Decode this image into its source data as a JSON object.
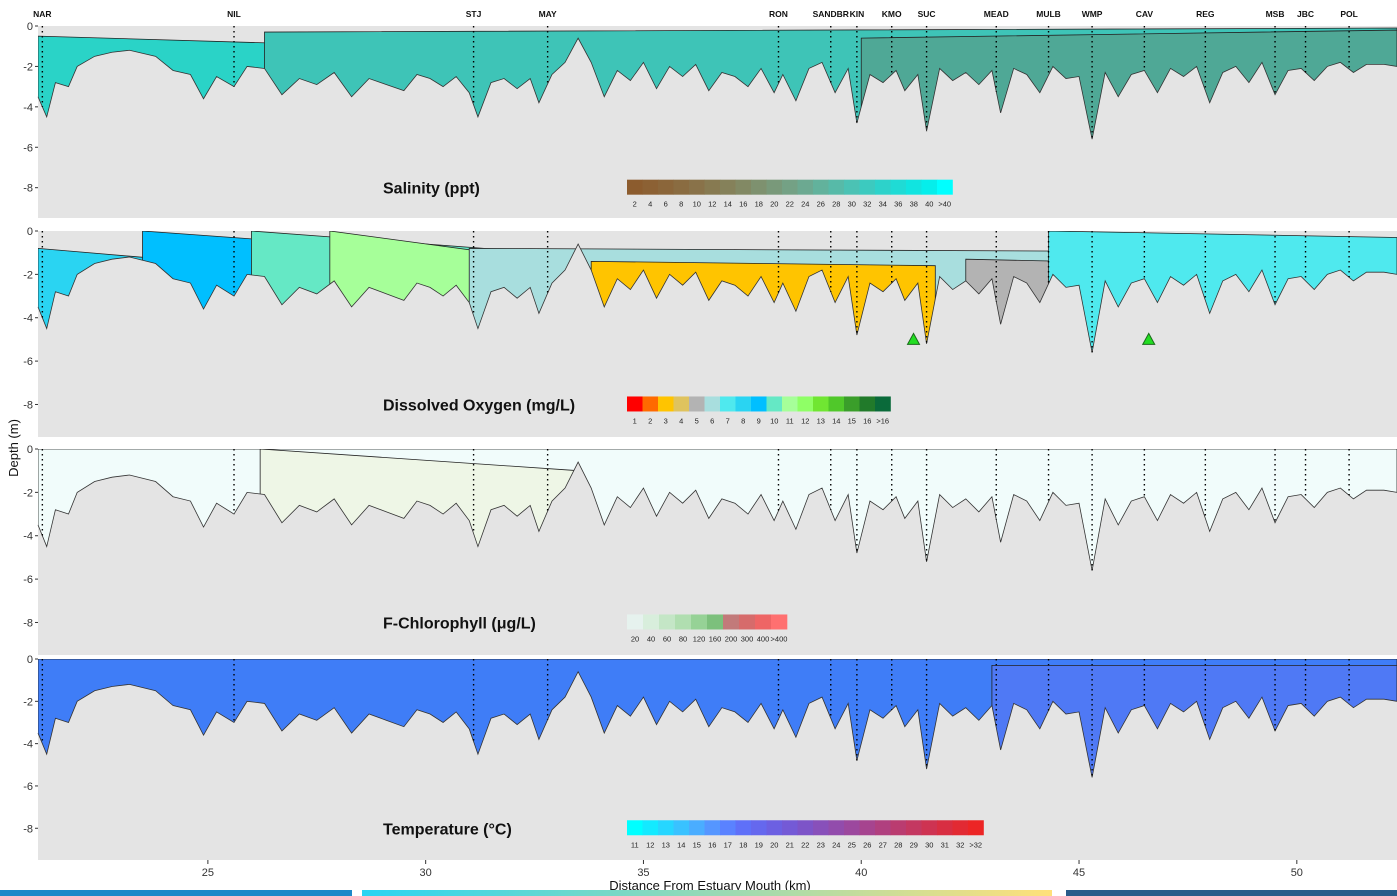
{
  "stations": [
    {
      "name": "NAR",
      "km": 21.2
    },
    {
      "name": "NIL",
      "km": 25.6
    },
    {
      "name": "STJ",
      "km": 31.1
    },
    {
      "name": "MAY",
      "km": 32.8
    },
    {
      "name": "RON",
      "km": 38.1
    },
    {
      "name": "SANDBR",
      "km": 39.3
    },
    {
      "name": "KIN",
      "km": 39.9
    },
    {
      "name": "KMO",
      "km": 40.7
    },
    {
      "name": "SUC",
      "km": 41.5
    },
    {
      "name": "MEAD",
      "km": 43.1
    },
    {
      "name": "MULB",
      "km": 44.3
    },
    {
      "name": "WMP",
      "km": 45.3
    },
    {
      "name": "CAV",
      "km": 46.5
    },
    {
      "name": "REG",
      "km": 47.9
    },
    {
      "name": "MSB",
      "km": 49.5
    },
    {
      "name": "JBC",
      "km": 50.2
    },
    {
      "name": "POL",
      "km": 51.2
    }
  ],
  "chart_data": {
    "type": "heatmap",
    "xlabel": "Distance From Estuary Mouth (km)",
    "ylabel": "Depth (m)",
    "xlim": [
      21.1,
      52.3
    ],
    "x_ticks": [
      25,
      30,
      35,
      40,
      45,
      50
    ],
    "ylim": [
      -9.5,
      0
    ],
    "y_ticks": [
      0,
      -2,
      -4,
      -6,
      -8
    ],
    "bottom_profile": {
      "x": [
        21.1,
        21.3,
        21.5,
        21.8,
        22.0,
        22.4,
        22.8,
        23.2,
        23.8,
        24.2,
        24.6,
        24.9,
        25.2,
        25.6,
        25.9,
        26.3,
        26.7,
        27.1,
        27.5,
        27.9,
        28.3,
        28.7,
        29.1,
        29.5,
        29.8,
        30.1,
        30.4,
        30.7,
        31.0,
        31.2,
        31.5,
        31.8,
        32.1,
        32.4,
        32.6,
        32.9,
        33.2,
        33.5,
        33.8,
        34.1,
        34.4,
        34.7,
        35.0,
        35.3,
        35.6,
        35.9,
        36.2,
        36.5,
        36.8,
        37.1,
        37.4,
        37.7,
        38.0,
        38.2,
        38.5,
        38.8,
        39.1,
        39.4,
        39.7,
        39.9,
        40.2,
        40.5,
        40.8,
        41.0,
        41.3,
        41.5,
        41.8,
        42.1,
        42.4,
        42.7,
        43.0,
        43.2,
        43.5,
        43.8,
        44.1,
        44.4,
        44.7,
        45.0,
        45.3,
        45.6,
        45.9,
        46.2,
        46.5,
        46.8,
        47.1,
        47.4,
        47.7,
        48.0,
        48.3,
        48.6,
        48.9,
        49.2,
        49.5,
        49.8,
        50.1,
        50.4,
        50.7,
        51.0,
        51.3,
        51.6,
        52.0,
        52.3
      ],
      "depth": [
        -3.5,
        -4.5,
        -2.8,
        -3.0,
        -2.0,
        -1.5,
        -1.3,
        -1.2,
        -1.5,
        -2.2,
        -2.4,
        -3.6,
        -2.5,
        -3.0,
        -2.0,
        -2.1,
        -3.4,
        -2.6,
        -2.9,
        -2.3,
        -3.5,
        -2.6,
        -2.9,
        -3.2,
        -2.4,
        -2.6,
        -3.0,
        -2.5,
        -3.3,
        -4.5,
        -2.8,
        -2.6,
        -3.1,
        -2.6,
        -3.8,
        -2.4,
        -1.8,
        -0.6,
        -1.8,
        -3.5,
        -2.2,
        -2.7,
        -1.8,
        -3.1,
        -2.0,
        -2.5,
        -1.9,
        -3.2,
        -2.3,
        -2.5,
        -3.0,
        -2.1,
        -3.3,
        -2.4,
        -3.7,
        -2.1,
        -1.8,
        -3.3,
        -2.1,
        -4.8,
        -2.4,
        -2.8,
        -2.2,
        -3.2,
        -2.4,
        -5.2,
        -2.1,
        -2.7,
        -2.3,
        -2.9,
        -2.2,
        -4.3,
        -2.1,
        -2.4,
        -3.3,
        -2.0,
        -2.6,
        -2.5,
        -5.6,
        -2.3,
        -3.5,
        -2.4,
        -2.2,
        -3.3,
        -2.1,
        -2.5,
        -2.0,
        -3.8,
        -2.3,
        -2.0,
        -2.8,
        -1.8,
        -3.4,
        -2.2,
        -2.1,
        -2.7,
        -2.0,
        -1.8,
        -2.3,
        -1.9,
        -1.9,
        -2.0
      ]
    },
    "panels": [
      {
        "title": "Salinity (ppt)",
        "legend": {
          "labels": [
            "2",
            "4",
            "6",
            "8",
            "10",
            "12",
            "14",
            "16",
            "18",
            "20",
            "22",
            "24",
            "26",
            "28",
            "30",
            "32",
            "34",
            "36",
            "38",
            "40",
            ">40"
          ],
          "colors": [
            "#8c5c2e",
            "#8c6134",
            "#8b663a",
            "#8a6c41",
            "#897249",
            "#877a51",
            "#85815a",
            "#828964",
            "#7e916f",
            "#79997a",
            "#74a185",
            "#6ca991",
            "#62b29c",
            "#57baa8",
            "#4bc2b4",
            "#3ccabf",
            "#2dd2ca",
            "#1fdbd5",
            "#11e4e0",
            "#05eeeb",
            "#00ffff"
          ]
        },
        "regions": [
          {
            "color": "#2ad3c7",
            "x": [
              21.1,
              52.3
            ],
            "top": [
              -0.5,
              -2.5
            ]
          },
          {
            "color": "#3ec4b7",
            "x": [
              26.3,
              52.3
            ],
            "top": [
              -0.3,
              -0.1
            ]
          },
          {
            "color": "#4fa896",
            "x": [
              40.0,
              52.3
            ],
            "top": [
              -0.6,
              -0.2
            ]
          }
        ]
      },
      {
        "title": "Dissolved Oxygen (mg/L)",
        "legend": {
          "labels": [
            "1",
            "2",
            "3",
            "4",
            "5",
            "6",
            "7",
            "8",
            "9",
            "10",
            "11",
            "12",
            "13",
            "14",
            "15",
            "16",
            ">16"
          ],
          "colors": [
            "#ff0000",
            "#ff6a00",
            "#ffc400",
            "#dfc35e",
            "#b3b3b3",
            "#a8dede",
            "#4fe9ee",
            "#2ad4f2",
            "#00bfff",
            "#65e8c5",
            "#a6ff99",
            "#8fff66",
            "#70e632",
            "#50c82a",
            "#3a9e2a",
            "#217a2a",
            "#0a6a3a"
          ]
        },
        "regions": [
          {
            "color": "#2ad4f2",
            "x": [
              21.1,
              31.0
            ],
            "top": [
              -0.8,
              -2.5
            ]
          },
          {
            "color": "#00bfff",
            "x": [
              23.5,
              29.0
            ],
            "top": [
              0,
              -0.8
            ]
          },
          {
            "color": "#65e8c5",
            "x": [
              26.0,
              34.0
            ],
            "top": [
              0,
              -1.2
            ]
          },
          {
            "color": "#a6ff99",
            "x": [
              27.8,
              31.5
            ],
            "top": [
              0,
              -1.0
            ]
          },
          {
            "color": "#a8dede",
            "x": [
              31.0,
              52.3
            ],
            "top": [
              -0.8,
              -1.0
            ]
          },
          {
            "color": "#ffc400",
            "x": [
              33.8,
              41.7
            ],
            "top": [
              -1.4,
              -1.6
            ]
          },
          {
            "color": "#b3b3b3",
            "x": [
              42.4,
              47.0
            ],
            "top": [
              -1.3,
              -1.5
            ]
          },
          {
            "color": "#4fe9ee",
            "x": [
              44.3,
              52.3
            ],
            "top": [
              0,
              -0.3
            ]
          }
        ],
        "markers": [
          {
            "km": 41.2,
            "depth": -5.0
          },
          {
            "km": 46.6,
            "depth": -5.0
          }
        ]
      },
      {
        "title": "F-Chlorophyll (μg/L)",
        "legend": {
          "labels": [
            "20",
            "40",
            "60",
            "80",
            "120",
            "160",
            "200",
            "300",
            "400",
            ">400"
          ],
          "colors": [
            "#e6f2ee",
            "#d8eedc",
            "#c4e6c6",
            "#b0deb0",
            "#96d296",
            "#7cc07c",
            "#c27a7a",
            "#d66b6b",
            "#ee6565",
            "#ff7070"
          ]
        },
        "regions": [
          {
            "color": "#f1fcfb",
            "x": [
              21.1,
              52.3
            ],
            "top": [
              0,
              0
            ]
          },
          {
            "color": "#eef6e6",
            "x": [
              26.2,
              33.5
            ],
            "top": [
              0,
              -1.0
            ]
          }
        ]
      },
      {
        "title": "Temperature (°C)",
        "legend": {
          "labels": [
            "11",
            "12",
            "13",
            "14",
            "15",
            "16",
            "17",
            "18",
            "19",
            "20",
            "21",
            "22",
            "23",
            "24",
            "25",
            "26",
            "27",
            "28",
            "29",
            "30",
            "31",
            "32",
            ">32"
          ],
          "colors": [
            "#00ffff",
            "#13eaff",
            "#26d6ff",
            "#39c2ff",
            "#4aadff",
            "#5596ff",
            "#5a82ff",
            "#5f70f8",
            "#6568ee",
            "#6c60e2",
            "#745ad6",
            "#7d54c8",
            "#8850ba",
            "#924cac",
            "#9c489e",
            "#a6448f",
            "#b0407f",
            "#ba3c70",
            "#c43861",
            "#ce3352",
            "#d82e42",
            "#e22a33",
            "#ec2525"
          ]
        },
        "regions": [
          {
            "color": "#3f7df7",
            "x": [
              21.1,
              52.3
            ],
            "top": [
              0,
              0
            ]
          },
          {
            "color": "#4f79f5",
            "x": [
              43.0,
              52.3
            ],
            "top": [
              -0.3,
              -0.3
            ]
          }
        ]
      }
    ]
  }
}
